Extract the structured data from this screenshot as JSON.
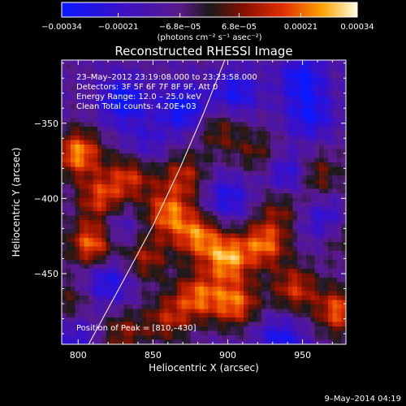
{
  "chart_data": {
    "type": "heatmap",
    "title": "Reconstructed RHESSI Image",
    "xlabel": "Heliocentric X (arcsec)",
    "ylabel": "Heliocentric Y (arcsec)",
    "xlim": [
      789,
      979
    ],
    "ylim": [
      -497,
      -308
    ],
    "x_ticks": [
      800,
      850,
      900,
      950
    ],
    "y_ticks": [
      -350,
      -400,
      -450
    ],
    "colorbar": {
      "label": "(photons cm⁻² s⁻¹ asec⁻²)",
      "range": [
        -0.00034,
        0.00034
      ],
      "tick_labels": [
        "−0.00034",
        "−0.00021",
        "−6.8e−05",
        "6.8e−05",
        "0.00021",
        "0.00034"
      ],
      "tick_values": [
        -0.00034,
        -0.00021,
        -6.8e-05,
        6.8e-05,
        0.00021,
        0.00034
      ]
    },
    "info_lines": [
      "23–May–2012 23:19:08.000 to 23:23:58.000",
      "Detectors: 3F 5F 6F 7F 8F 9F, Att 0",
      "Energy Range: 12.0 – 25.0 keV",
      "Clean    Total counts: 4.20E+03"
    ],
    "peak_label": "Position of Peak = [810,–430]",
    "peak_position": [
      810,
      -430
    ],
    "limb_curve": [
      [
        807,
        -497
      ],
      [
        830,
        -455
      ],
      [
        850,
        -418
      ],
      [
        868,
        -380
      ],
      [
        884,
        -343
      ],
      [
        898,
        -308
      ]
    ],
    "hot_spots": [
      {
        "x": 800,
        "y": -370,
        "v": 0.00034
      },
      {
        "x": 815,
        "y": -400,
        "v": 0.00026
      },
      {
        "x": 810,
        "y": -430,
        "v": 0.00034
      },
      {
        "x": 835,
        "y": -385,
        "v": 0.00024
      },
      {
        "x": 860,
        "y": -410,
        "v": 0.0003
      },
      {
        "x": 870,
        "y": -385,
        "v": 0.00022
      },
      {
        "x": 845,
        "y": -440,
        "v": 0.0002
      },
      {
        "x": 880,
        "y": -425,
        "v": 0.0003
      },
      {
        "x": 900,
        "y": -440,
        "v": 0.00034
      },
      {
        "x": 925,
        "y": -430,
        "v": 0.0003
      },
      {
        "x": 880,
        "y": -465,
        "v": 0.00028
      },
      {
        "x": 905,
        "y": -470,
        "v": 0.0003
      },
      {
        "x": 945,
        "y": -460,
        "v": 0.00024
      },
      {
        "x": 975,
        "y": -475,
        "v": 0.0003
      },
      {
        "x": 895,
        "y": -355,
        "v": 0.00016
      },
      {
        "x": 920,
        "y": -370,
        "v": 0.00014
      },
      {
        "x": 935,
        "y": -405,
        "v": 0.00016
      },
      {
        "x": 960,
        "y": -385,
        "v": 0.00018
      },
      {
        "x": 795,
        "y": -470,
        "v": 0.00014
      },
      {
        "x": 830,
        "y": -490,
        "v": 0.00018
      },
      {
        "x": 860,
        "y": -480,
        "v": 0.0002
      },
      {
        "x": 975,
        "y": -425,
        "v": 0.00014
      }
    ],
    "cold_spots": [
      {
        "x": 830,
        "y": -335,
        "v": -0.00024
      },
      {
        "x": 870,
        "y": -340,
        "v": -0.00024
      },
      {
        "x": 905,
        "y": -330,
        "v": -0.0002
      },
      {
        "x": 950,
        "y": -320,
        "v": -0.00022
      },
      {
        "x": 955,
        "y": -345,
        "v": -0.0002
      },
      {
        "x": 900,
        "y": -400,
        "v": -0.00018
      },
      {
        "x": 940,
        "y": -385,
        "v": -0.0002
      },
      {
        "x": 965,
        "y": -415,
        "v": -0.00018
      },
      {
        "x": 820,
        "y": -455,
        "v": -0.0002
      },
      {
        "x": 825,
        "y": -420,
        "v": -0.00014
      },
      {
        "x": 800,
        "y": -490,
        "v": -0.00014
      },
      {
        "x": 935,
        "y": -495,
        "v": -0.0002
      },
      {
        "x": 845,
        "y": -365,
        "v": -0.00012
      }
    ]
  },
  "footer": {
    "date": "9–May–2014 04:19"
  }
}
